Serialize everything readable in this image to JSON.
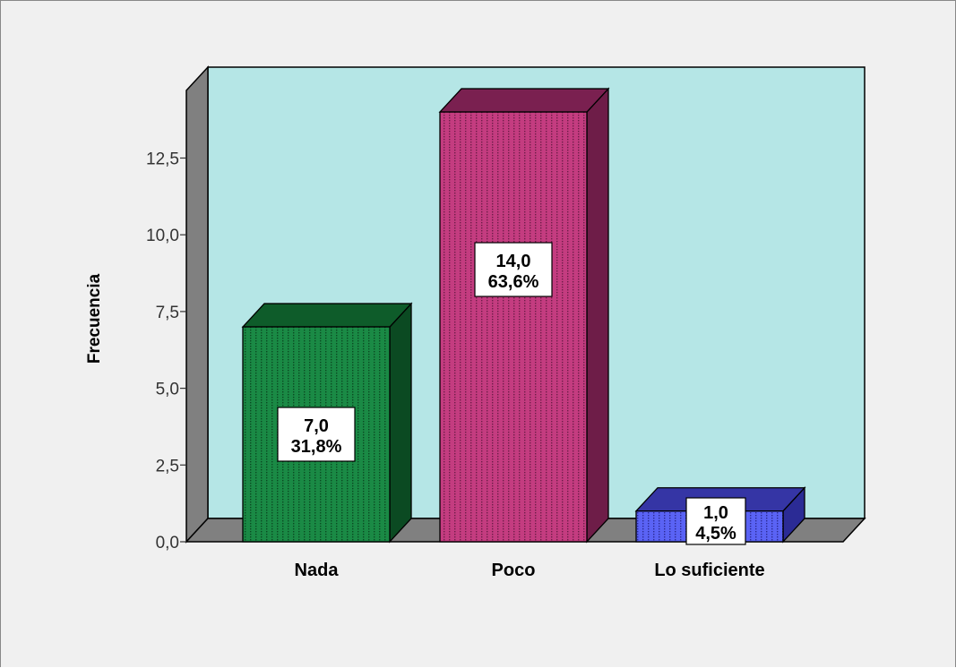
{
  "chart_data": {
    "type": "bar",
    "categories": [
      "Nada",
      "Poco",
      "Lo suficiente"
    ],
    "values": [
      7.0,
      14.0,
      1.0
    ],
    "percents": [
      "31,8%",
      "63,6%",
      "4,5%"
    ],
    "value_labels": [
      "7,0",
      "14,0",
      "1,0"
    ],
    "xlabel": "",
    "ylabel": "Frecuencia",
    "ylim": [
      0,
      14
    ],
    "yticks": [
      0,
      2.5,
      5,
      7.5,
      10,
      12.5
    ],
    "ytick_labels": [
      "0,0",
      "2,5",
      "5,0",
      "7,5",
      "10,0",
      "12,5"
    ],
    "grid": false,
    "style": "3d",
    "colors": {
      "plot_background": "#b5e6e6",
      "wall_side": "#808080",
      "floor": "#808080",
      "frame_background": "#f0f0f0",
      "bars": [
        {
          "front": "#1a8a45",
          "top": "#0e5c2a",
          "side": "#0b4a22",
          "pattern": "#0b4a22"
        },
        {
          "front": "#c43c80",
          "top": "#7a2050",
          "side": "#6e1d48",
          "pattern": "#6e1d48"
        },
        {
          "front": "#5a63f5",
          "top": "#3535a5",
          "side": "#2b2b95",
          "pattern": "#2b2b95"
        }
      ]
    }
  }
}
